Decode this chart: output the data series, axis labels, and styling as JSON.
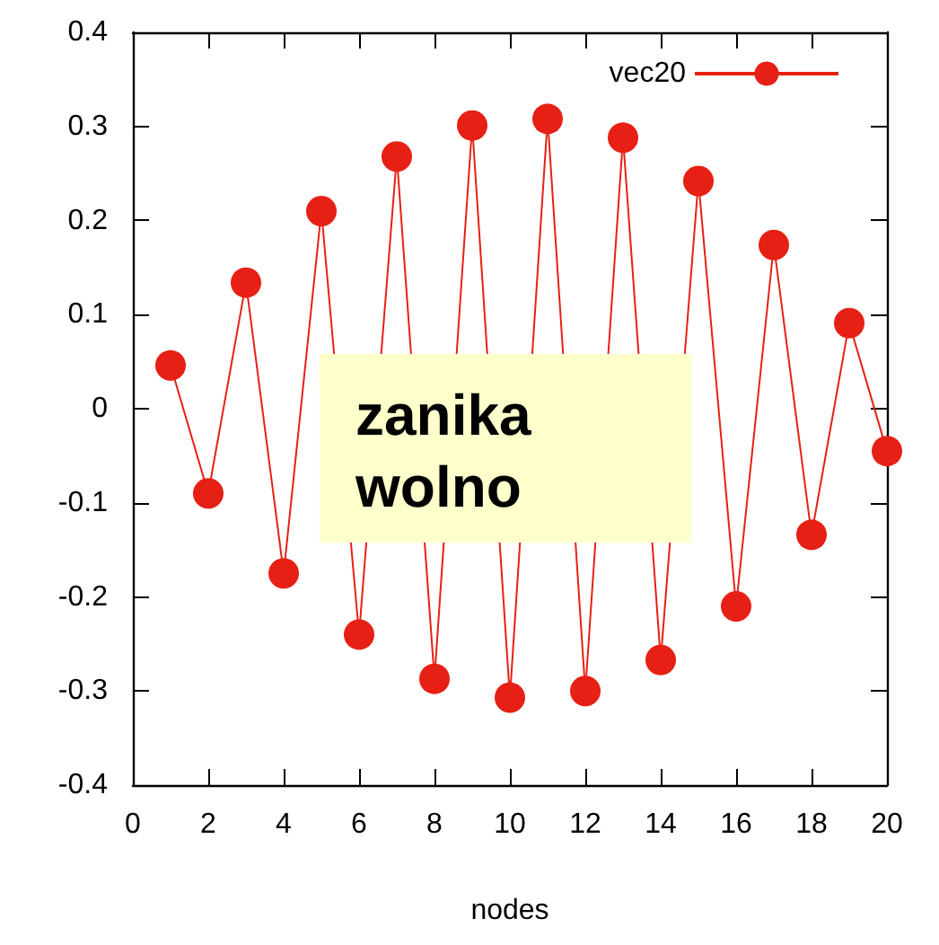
{
  "chart_data": {
    "type": "line",
    "xlabel": "nodes",
    "x": [
      1,
      2,
      3,
      4,
      5,
      6,
      7,
      8,
      9,
      10,
      11,
      12,
      13,
      14,
      15,
      16,
      17,
      18,
      19,
      20
    ],
    "series": [
      {
        "name": "vec20",
        "color": "#e62014",
        "values": [
          0.046,
          -0.09,
          0.134,
          -0.175,
          0.21,
          -0.24,
          0.268,
          -0.287,
          0.301,
          -0.307,
          0.308,
          -0.3,
          0.288,
          -0.267,
          0.242,
          -0.21,
          0.174,
          -0.134,
          0.091,
          -0.045
        ]
      }
    ],
    "xlim": [
      0,
      20
    ],
    "xticks": [
      0,
      2,
      4,
      6,
      8,
      10,
      12,
      14,
      16,
      18,
      20
    ],
    "ylim": [
      -0.4,
      0.4
    ],
    "yticks": [
      -0.4,
      -0.3,
      -0.2,
      -0.1,
      0,
      0.1,
      0.2,
      0.3,
      0.4
    ],
    "annotations": [
      "zanika wolno"
    ],
    "legend": "top right",
    "marker": "circle",
    "line_style": "solid",
    "grid": false
  }
}
